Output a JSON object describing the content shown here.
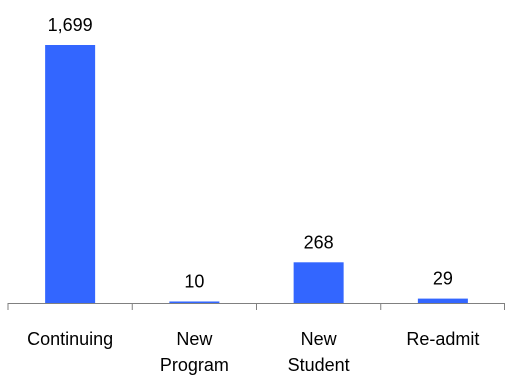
{
  "colors": {
    "bar": "#3366ff",
    "axis": "#808080",
    "text": "#000000",
    "background": "#ffffff"
  },
  "chart_data": {
    "type": "bar",
    "title": "",
    "xlabel": "",
    "ylabel": "",
    "categories": [
      [
        "Continuing"
      ],
      [
        "New",
        "Program"
      ],
      [
        "New",
        "Student"
      ],
      [
        "Re-admit"
      ]
    ],
    "values": [
      1699,
      10,
      268,
      29
    ],
    "data_labels": [
      "1,699",
      "10",
      "268",
      "29"
    ],
    "ylim": [
      0,
      1699
    ],
    "grid": false,
    "legend": "none"
  }
}
